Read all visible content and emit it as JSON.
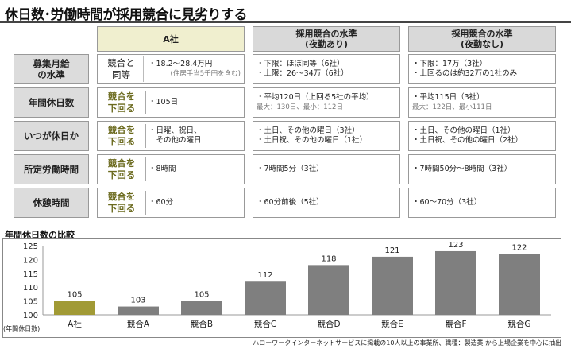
{
  "title": "休日数･労働時間が採用競合に見劣りする",
  "headers": {
    "a": "A社",
    "b": [
      "採用競合の水準",
      "(夜勤あり)"
    ],
    "c": [
      "採用競合の水準",
      "(夜勤なし)"
    ]
  },
  "rows": [
    {
      "label": [
        "募集月給",
        "の水準"
      ],
      "badge": [
        "競合と",
        "同等"
      ],
      "badge_style": "plain",
      "a": [
        "・18.2～28.4万円"
      ],
      "a_sub": "(住居手当5千円を含む)",
      "b": [
        "・下限：ほぼ同等（6社）",
        "・上限：26～34万（6社）"
      ],
      "b_sub": "",
      "c": [
        "・下限：17万（3社）",
        "・上回るのは約32万の1社のみ"
      ],
      "c_sub": ""
    },
    {
      "label": [
        "年間休日数"
      ],
      "badge": [
        "競合を",
        "下回る"
      ],
      "badge_style": "accent",
      "a": [
        "・105日"
      ],
      "a_sub": "",
      "b": [
        "・平均120日（上回る5社の平均）"
      ],
      "b_sub": "最大：130日、最小：112日",
      "c": [
        "・平均115日（3社）"
      ],
      "c_sub": "最大：122日、最小111日"
    },
    {
      "label": [
        "いつが休日か"
      ],
      "badge": [
        "競合を",
        "下回る"
      ],
      "badge_style": "accent",
      "a": [
        "・日曜、祝日、",
        "　その他の曜日"
      ],
      "a_sub": "",
      "b": [
        "・土日、その他の曜日（3社）",
        "・土日祝、その他の曜日（1社）"
      ],
      "b_sub": "",
      "c": [
        "・土日、その他の曜日（1社）",
        "・土日祝、その他の曜日（2社）"
      ],
      "c_sub": ""
    },
    {
      "label": [
        "所定労働時間"
      ],
      "badge": [
        "競合を",
        "下回る"
      ],
      "badge_style": "accent",
      "a": [
        "・8時間"
      ],
      "a_sub": "",
      "b": [
        "・7時間5分（3社）"
      ],
      "b_sub": "",
      "c": [
        "・7時間50分～8時間（3社）"
      ],
      "c_sub": ""
    },
    {
      "label": [
        "休憩時間"
      ],
      "badge": [
        "競合を",
        "下回る"
      ],
      "badge_style": "accent",
      "a": [
        "・60分"
      ],
      "a_sub": "",
      "b": [
        "・60分前後（5社）"
      ],
      "b_sub": "",
      "c": [
        "・60～70分（3社）"
      ],
      "c_sub": ""
    }
  ],
  "colors": {
    "accent_text": "#6b6a1e",
    "bar_highlight": "#a19a35",
    "bar_default": "#7f7f7f",
    "header_highlight": "#f0efcf",
    "header_gray": "#d9d9d9"
  },
  "chart_data": {
    "type": "bar",
    "title": "年間休日数の比較",
    "categories": [
      "A社",
      "競合A",
      "競合B",
      "競合C",
      "競合D",
      "競合E",
      "競合F",
      "競合G"
    ],
    "values": [
      105,
      103,
      105,
      112,
      118,
      121,
      123,
      122
    ],
    "highlight_index": 0,
    "ylim": [
      100,
      125
    ],
    "yticks": [
      100,
      105,
      110,
      115,
      120,
      125
    ],
    "ylabel": "(年間休日数)",
    "grid": false,
    "legend": false
  },
  "source": "ハローワークインターネットサービスに掲載の10人以上の事業所、職種：製造業 から上場企業を中心に抽出"
}
